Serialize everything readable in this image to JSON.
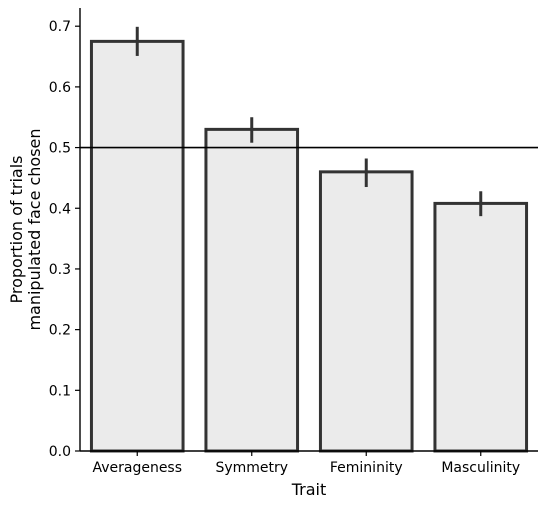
{
  "chart_data": {
    "type": "bar",
    "categories": [
      "Averageness",
      "Symmetry",
      "Femininity",
      "Masculinity"
    ],
    "values": [
      0.675,
      0.53,
      0.46,
      0.408
    ],
    "error_low": [
      0.651,
      0.508,
      0.435,
      0.387
    ],
    "error_high": [
      0.699,
      0.55,
      0.482,
      0.428
    ],
    "reference_line": 0.5,
    "xlabel": "Trait",
    "ylabel": [
      "Proportion of trials",
      "manipulated face chosen"
    ],
    "ylim": [
      0,
      0.73
    ],
    "yticks": [
      0.0,
      0.1,
      0.2,
      0.3,
      0.4,
      0.5,
      0.6,
      0.7
    ],
    "ytick_labels": [
      "0.0",
      "0.1",
      "0.2",
      "0.3",
      "0.4",
      "0.5",
      "0.6",
      "0.7"
    ],
    "grid": false,
    "colors": {
      "bar_fill": "#ebebeb",
      "bar_edge": "#333333",
      "error_bar": "#333333",
      "reference": "#000000"
    }
  }
}
